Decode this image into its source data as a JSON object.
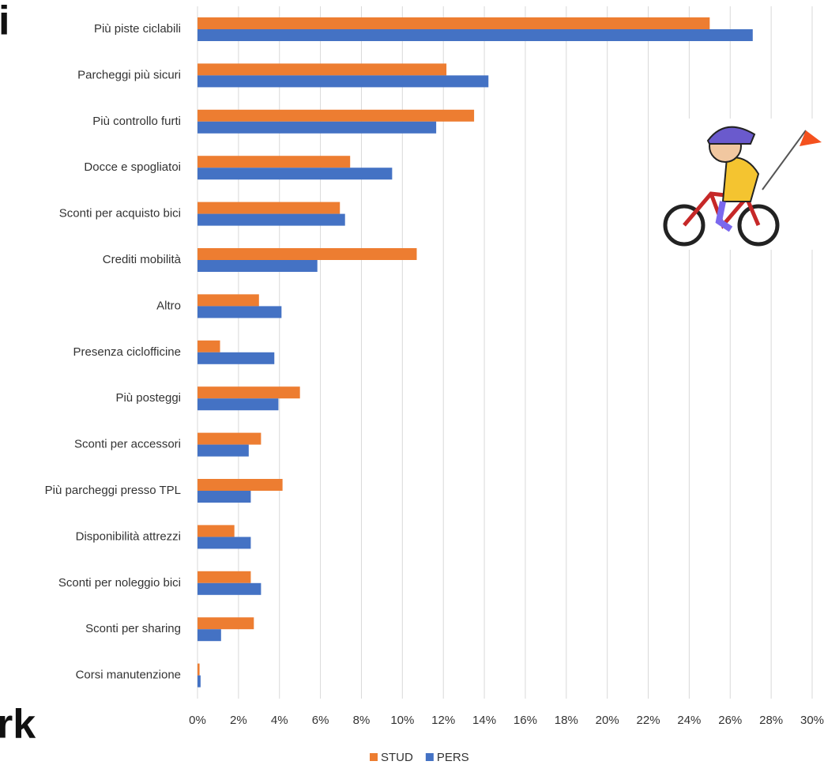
{
  "slide_fragments": [
    "i",
    "rk"
  ],
  "chart_data": {
    "type": "hbar",
    "categories": [
      "Più piste ciclabili",
      "Parcheggi più sicuri",
      "Più controllo furti",
      "Docce e spogliatoi",
      "Sconti per acquisto bici",
      "Crediti mobilità",
      "Altro",
      "Presenza ciclofficine",
      "Più posteggi",
      "Sconti per accessori",
      "Più parcheggi presso TPL",
      "Disponibilità attrezzi",
      "Sconti per noleggio bici",
      "Sconti per sharing",
      "Corsi manutenzione"
    ],
    "series": [
      {
        "name": "STUD",
        "color": "#ed7d31",
        "values": [
          25.0,
          12.15,
          13.5,
          7.45,
          6.95,
          10.7,
          3.0,
          1.1,
          5.0,
          3.1,
          4.15,
          1.8,
          2.6,
          2.75,
          0.1
        ]
      },
      {
        "name": "PERS",
        "color": "#4472c4",
        "values": [
          27.1,
          14.2,
          11.65,
          9.5,
          7.2,
          5.85,
          4.1,
          3.75,
          3.95,
          2.5,
          2.6,
          2.6,
          3.1,
          1.15,
          0.15
        ]
      }
    ],
    "xlim": [
      0,
      30
    ],
    "xticks": [
      {
        "value": 0,
        "label": "0%"
      },
      {
        "value": 2,
        "label": "2%"
      },
      {
        "value": 4,
        "label": "4%"
      },
      {
        "value": 6,
        "label": "6%"
      },
      {
        "value": 8,
        "label": "8%"
      },
      {
        "value": 10,
        "label": "10%"
      },
      {
        "value": 12,
        "label": "12%"
      },
      {
        "value": 14,
        "label": "14%"
      },
      {
        "value": 16,
        "label": "16%"
      },
      {
        "value": 18,
        "label": "18%"
      },
      {
        "value": 20,
        "label": "20%"
      },
      {
        "value": 22,
        "label": "22%"
      },
      {
        "value": 24,
        "label": "24%"
      },
      {
        "value": 26,
        "label": "26%"
      },
      {
        "value": 28,
        "label": "28%"
      },
      {
        "value": 30,
        "label": "30%"
      }
    ],
    "grid": true,
    "legend": "bottom"
  }
}
